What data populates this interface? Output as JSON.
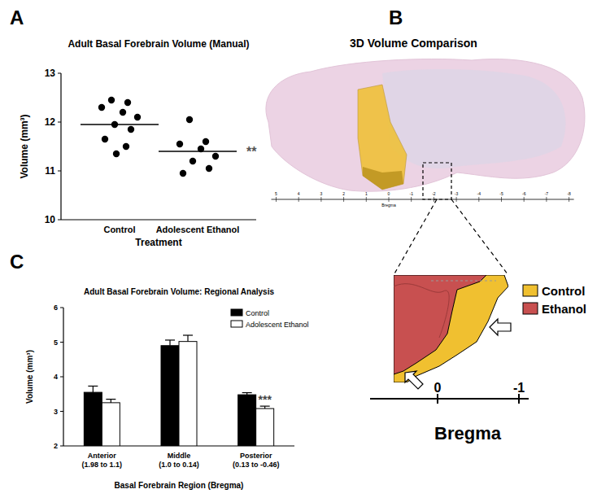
{
  "panel_labels": [
    "A",
    "B",
    "C"
  ],
  "chart_data": [
    {
      "type": "scatter",
      "title": "Adult Basal Forebrain Volume (Manual)",
      "x_label": "Treatment",
      "y_label": "Volume (mm³)",
      "categories": [
        "Control",
        "Adolescent Ethanol"
      ],
      "values": [
        [
          12.45,
          12.4,
          12.3,
          12.2,
          12.1,
          11.95,
          11.85,
          11.65,
          11.5,
          11.35
        ],
        [
          12.05,
          11.6,
          11.55,
          11.45,
          11.3,
          11.2,
          11.05,
          10.95
        ]
      ],
      "means": [
        11.95,
        11.4
      ],
      "color": "#000000",
      "ylim": [
        10,
        13
      ],
      "yticks": [
        10,
        11,
        12,
        13
      ],
      "annotations": [
        {
          "text": "**",
          "category": 1
        }
      ]
    },
    {
      "type": "bar",
      "title": "Adult Basal Forebrain Volume: Regional Analysis",
      "x_label": "Basal Forebrain Region (Bregma)",
      "y_label": "Volume (mm³)",
      "categories": [
        "Anterior\n(1.98 to 1.1)",
        "Middle\n(1.0 to 0.14)",
        "Posterior\n(0.13 to -0.46)"
      ],
      "series": [
        {
          "name": "Control",
          "color": "#000000",
          "values": [
            3.55,
            4.9,
            3.48
          ],
          "errors": [
            0.18,
            0.16,
            0.06
          ]
        },
        {
          "name": "Adolescent Ethanol",
          "color": "#ffffff",
          "values": [
            3.25,
            5.02,
            3.08
          ],
          "errors": [
            0.1,
            0.18,
            0.07
          ]
        }
      ],
      "ylim": [
        2,
        6
      ],
      "yticks": [
        2,
        3,
        4,
        5,
        6
      ],
      "legend": "top-right",
      "annotations": [
        {
          "text": "***",
          "series": 1,
          "category": 2
        }
      ]
    }
  ],
  "diagram": {
    "title": "3D Volume Comparison",
    "ruler": {
      "ticks": [
        5,
        4,
        3,
        2,
        1,
        0,
        -1,
        -2,
        -3,
        -4,
        -5,
        -6,
        -7,
        -8
      ],
      "label": "Bregma"
    },
    "legend": [
      {
        "label": "Control",
        "color": "#f0c030"
      },
      {
        "label": "Ethanol",
        "color": "#c85050"
      }
    ],
    "bregma": {
      "label": "Bregma",
      "ticks": [
        0,
        -1
      ]
    }
  }
}
